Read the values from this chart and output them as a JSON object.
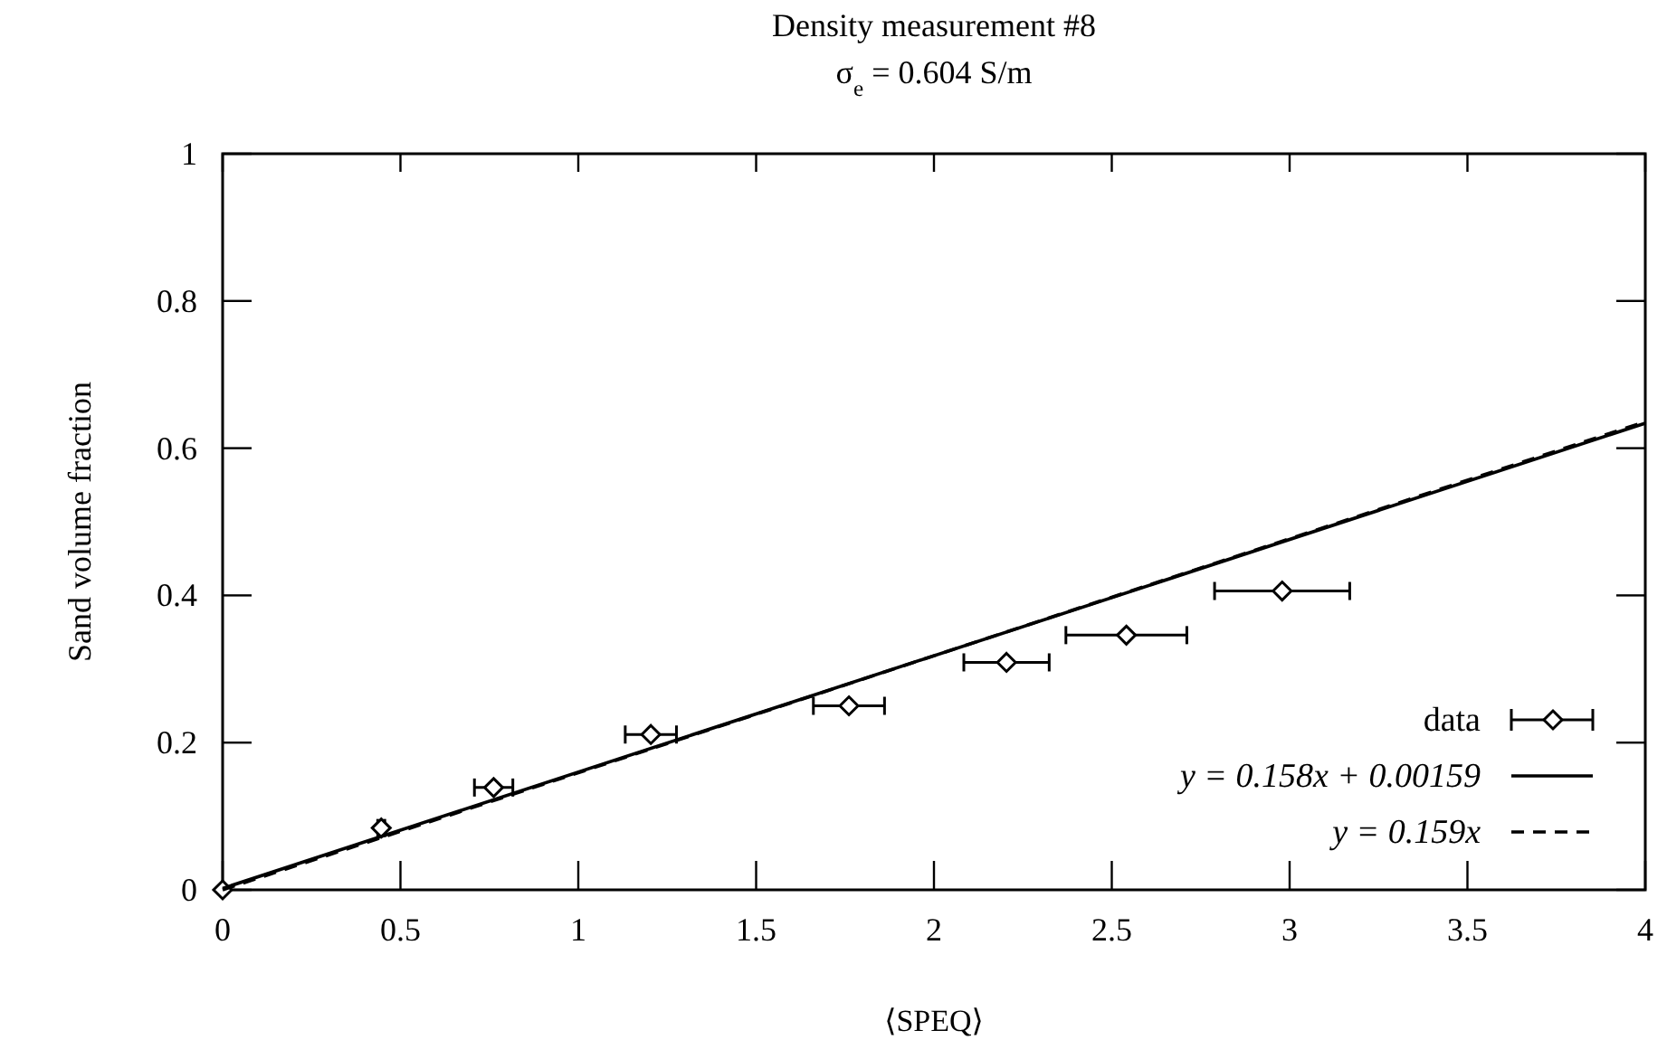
{
  "chart_data": {
    "type": "scatter",
    "title": "Density measurement #8",
    "subtitle": "σ$_{e}$ = 0.604 S/m",
    "xlabel": "⟨SPEQ⟩",
    "ylabel": "Sand volume fraction",
    "xlim": [
      0,
      4
    ],
    "xticks": [
      0,
      0.5,
      1,
      1.5,
      2,
      2.5,
      3,
      3.5,
      4
    ],
    "ylim": [
      0,
      1
    ],
    "yticks": [
      0,
      0.2,
      0.4,
      0.6,
      0.8,
      1
    ],
    "grid": false,
    "legend": "bottom right",
    "series": [
      {
        "name": "data",
        "color": "#000000",
        "marker": "diamond",
        "x": [
          0,
          0.446,
          0.762,
          1.204,
          1.761,
          2.204,
          2.541,
          2.979
        ],
        "values": [
          0,
          0.084,
          0.139,
          0.211,
          0.25,
          0.309,
          0.346,
          0.406
        ],
        "xerrors": [
          null,
          0.01,
          0.054,
          0.072,
          0.1,
          0.12,
          0.17,
          0.19
        ]
      },
      {
        "name": "y = 0.158x + 0.00159",
        "type": "line",
        "color": "#000000",
        "marker": "none",
        "line_style": "solid",
        "x": [
          0,
          4
        ],
        "values": [
          0.002,
          0.634
        ]
      },
      {
        "name": "y = 0.159x",
        "type": "line",
        "color": "#000000",
        "marker": "none",
        "line_style": "dashed",
        "x": [
          0,
          4
        ],
        "values": [
          0,
          0.636
        ]
      }
    ]
  }
}
